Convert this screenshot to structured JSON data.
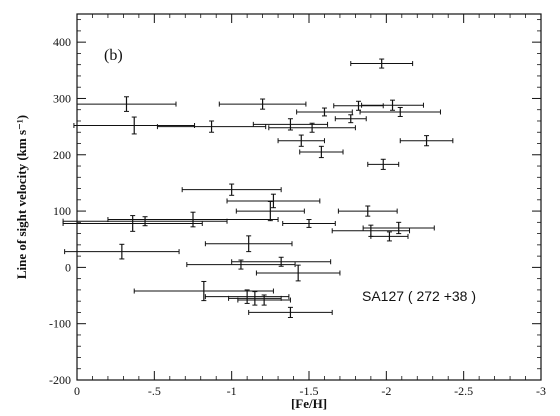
{
  "chart_data": {
    "type": "scatter",
    "panel_label": "(b)",
    "annotation": "SA127 ( 272 +38 )",
    "xlabel": "[Fe/H]",
    "ylabel": "Line of sight velocity (km s⁻¹)",
    "xlim": [
      0,
      -3
    ],
    "ylim": [
      -200,
      450
    ],
    "x_ticks": [
      0,
      -0.5,
      -1,
      -1.5,
      -2,
      -2.5,
      -3
    ],
    "x_tick_labels": [
      "0",
      "-.5",
      "-1",
      "-1.5",
      "-2",
      "-2.5",
      "-3"
    ],
    "y_ticks": [
      -200,
      -100,
      0,
      100,
      200,
      300,
      400
    ],
    "y_tick_labels": [
      "-200",
      "-100",
      "0",
      "100",
      "200",
      "300",
      "400"
    ],
    "grid": false,
    "error_bars": "horizontal error in [Fe/H], vertical error in velocity",
    "points": [
      {
        "x": -1.97,
        "y": 362,
        "xerr": 0.2,
        "yerr": 8
      },
      {
        "x": -0.32,
        "y": 290,
        "xerr": 0.32,
        "yerr": 13
      },
      {
        "x": -1.2,
        "y": 290,
        "xerr": 0.28,
        "yerr": 9
      },
      {
        "x": -1.82,
        "y": 287,
        "xerr": 0.16,
        "yerr": 8
      },
      {
        "x": -2.04,
        "y": 288,
        "xerr": 0.2,
        "yerr": 9
      },
      {
        "x": -1.6,
        "y": 276,
        "xerr": 0.18,
        "yerr": 7
      },
      {
        "x": -2.09,
        "y": 276,
        "xerr": 0.26,
        "yerr": 8
      },
      {
        "x": -1.77,
        "y": 264,
        "xerr": 0.1,
        "yerr": 7
      },
      {
        "x": -0.37,
        "y": 252,
        "xerr": 0.39,
        "yerr": 15
      },
      {
        "x": -0.87,
        "y": 250,
        "xerr": 0.35,
        "yerr": 10
      },
      {
        "x": -1.38,
        "y": 254,
        "xerr": 0.24,
        "yerr": 10
      },
      {
        "x": -1.52,
        "y": 248,
        "xerr": 0.28,
        "yerr": 8
      },
      {
        "x": -1.45,
        "y": 225,
        "xerr": 0.15,
        "yerr": 10
      },
      {
        "x": -2.26,
        "y": 225,
        "xerr": 0.17,
        "yerr": 9
      },
      {
        "x": -1.58,
        "y": 205,
        "xerr": 0.14,
        "yerr": 10
      },
      {
        "x": -1.98,
        "y": 183,
        "xerr": 0.1,
        "yerr": 9
      },
      {
        "x": -1.0,
        "y": 138,
        "xerr": 0.32,
        "yerr": 10
      },
      {
        "x": -1.27,
        "y": 118,
        "xerr": 0.3,
        "yerr": 12
      },
      {
        "x": -1.88,
        "y": 100,
        "xerr": 0.19,
        "yerr": 9
      },
      {
        "x": -0.75,
        "y": 85,
        "xerr": 0.55,
        "yerr": 13
      },
      {
        "x": -0.44,
        "y": 82,
        "xerr": 0.53,
        "yerr": 8
      },
      {
        "x": -0.36,
        "y": 78,
        "xerr": 0.45,
        "yerr": 14
      },
      {
        "x": -1.25,
        "y": 100,
        "xerr": 0.22,
        "yerr": 17
      },
      {
        "x": -1.5,
        "y": 78,
        "xerr": 0.17,
        "yerr": 7
      },
      {
        "x": -1.9,
        "y": 65,
        "xerr": 0.25,
        "yerr": 10
      },
      {
        "x": -2.08,
        "y": 70,
        "xerr": 0.23,
        "yerr": 10
      },
      {
        "x": -2.02,
        "y": 55,
        "xerr": 0.12,
        "yerr": 8
      },
      {
        "x": -1.11,
        "y": 42,
        "xerr": 0.28,
        "yerr": 14
      },
      {
        "x": -0.29,
        "y": 28,
        "xerr": 0.37,
        "yerr": 13
      },
      {
        "x": -1.32,
        "y": 10,
        "xerr": 0.32,
        "yerr": 8
      },
      {
        "x": -1.06,
        "y": 5,
        "xerr": 0.35,
        "yerr": 8
      },
      {
        "x": -1.43,
        "y": -10,
        "xerr": 0.27,
        "yerr": 14
      },
      {
        "x": -0.82,
        "y": -42,
        "xerr": 0.45,
        "yerr": 17
      },
      {
        "x": -1.1,
        "y": -52,
        "xerr": 0.27,
        "yerr": 12
      },
      {
        "x": -1.15,
        "y": -55,
        "xerr": 0.17,
        "yerr": 12
      },
      {
        "x": -1.21,
        "y": -58,
        "xerr": 0.17,
        "yerr": 9
      },
      {
        "x": -1.38,
        "y": -80,
        "xerr": 0.27,
        "yerr": 9
      }
    ]
  }
}
